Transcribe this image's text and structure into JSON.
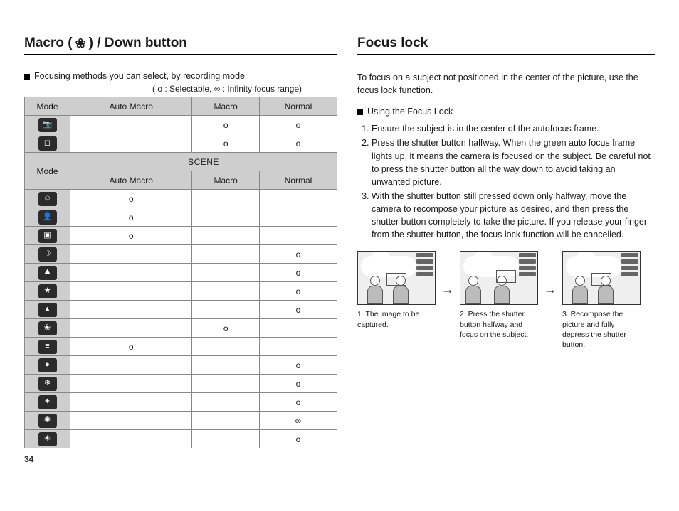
{
  "left": {
    "title_a": "Macro (",
    "title_b": ") / Down button",
    "intro": "Focusing methods you can select, by recording mode",
    "hint": "( o : Selectable,  ∞ : Infinity focus range)",
    "table1": {
      "headers": [
        "Mode",
        "Auto Macro",
        "Macro",
        "Normal"
      ],
      "rows": [
        {
          "icon": "📷",
          "auto": "",
          "macro": "o",
          "normal": "o"
        },
        {
          "icon": "◻",
          "auto": "",
          "macro": "o",
          "normal": "o"
        }
      ]
    },
    "table2": {
      "mode_label": "Mode",
      "scene_label": "SCENE",
      "sub_headers": [
        "Auto Macro",
        "Macro",
        "Normal"
      ],
      "rows": [
        {
          "icon": "☺",
          "auto": "o",
          "macro": "",
          "normal": ""
        },
        {
          "icon": "👤",
          "auto": "o",
          "macro": "",
          "normal": ""
        },
        {
          "icon": "▣",
          "auto": "o",
          "macro": "",
          "normal": ""
        },
        {
          "icon": "☽",
          "auto": "",
          "macro": "",
          "normal": "o"
        },
        {
          "icon": "⛰",
          "auto": "",
          "macro": "",
          "normal": "o"
        },
        {
          "icon": "★",
          "auto": "",
          "macro": "",
          "normal": "o"
        },
        {
          "icon": "▲",
          "auto": "",
          "macro": "",
          "normal": "o"
        },
        {
          "icon": "❀",
          "auto": "",
          "macro": "o",
          "normal": ""
        },
        {
          "icon": "≡",
          "auto": "o",
          "macro": "",
          "normal": ""
        },
        {
          "icon": "●",
          "auto": "",
          "macro": "",
          "normal": "o"
        },
        {
          "icon": "❄",
          "auto": "",
          "macro": "",
          "normal": "o"
        },
        {
          "icon": "✦",
          "auto": "",
          "macro": "",
          "normal": "o"
        },
        {
          "icon": "✺",
          "auto": "",
          "macro": "",
          "normal": "∞"
        },
        {
          "icon": "☀",
          "auto": "",
          "macro": "",
          "normal": "o"
        }
      ]
    }
  },
  "right": {
    "title": "Focus lock",
    "intro": "To focus on a subject not positioned in the center of the picture, use the focus lock function.",
    "using_label": "Using the Focus Lock",
    "steps": [
      "Ensure the subject is in the center of the autofocus frame.",
      "Press the shutter button halfway. When the green auto focus frame lights up, it means the camera is focused on the subject. Be careful not to press the shutter button all the way down to avoid taking an unwanted picture.",
      "With the shutter button still pressed down only halfway, move the camera to recompose your picture as desired, and then press the shutter button completely to take the picture. If you release your finger from the shutter button, the focus lock function will be cancelled."
    ],
    "captions": [
      "1. The image to be captured.",
      "2. Press the shutter button halfway and focus on the subject.",
      "3. Recompose the picture and fully depress the shutter button."
    ]
  },
  "page_number": "34"
}
